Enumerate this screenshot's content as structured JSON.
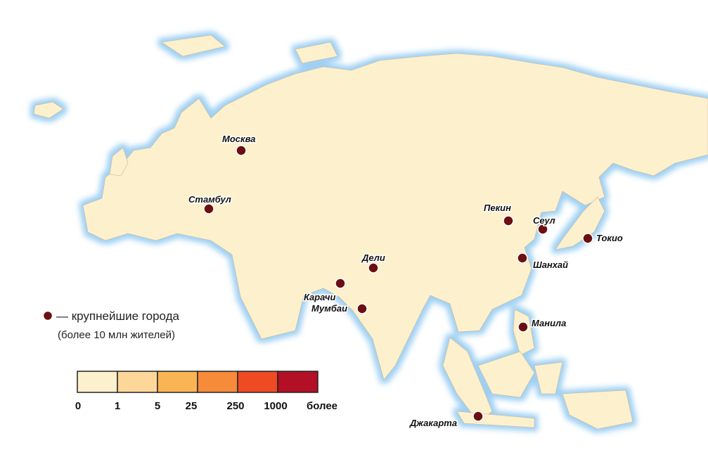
{
  "cities": [
    "Москва",
    "Стамбул",
    "Пекин",
    "Сеул",
    "Токио",
    "Шанхай",
    "Дели",
    "Карачи",
    "Мумбаи",
    "Манила",
    "Джакарта"
  ],
  "legend": {
    "marker_label": "— крупнейшие города",
    "note": "(более 10 млн жителей)"
  },
  "scale": {
    "ticks": [
      0,
      1,
      5,
      25,
      250,
      1000,
      "более"
    ],
    "colors": [
      "#fdf0cc",
      "#fdd69a",
      "#f9b553",
      "#f68b3a",
      "#ee4a24",
      "#b30f25"
    ]
  }
}
